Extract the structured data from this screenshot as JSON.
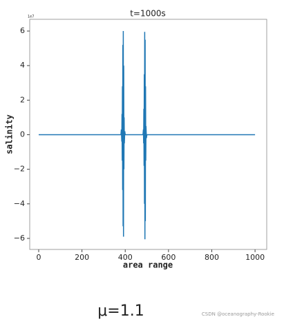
{
  "chart_data": {
    "type": "line",
    "title": "t=1000s",
    "x_label": "area range",
    "y_label": "salinity",
    "y_offset_label": "1e7",
    "x": [
      0,
      380,
      382,
      384,
      385,
      386,
      387,
      388,
      389,
      390,
      391,
      392,
      393,
      394,
      395,
      396,
      398,
      400,
      480,
      482,
      484,
      485,
      486,
      487,
      488,
      489,
      490,
      491,
      492,
      493,
      494,
      495,
      496,
      498,
      500,
      1000
    ],
    "series": [
      {
        "color": "#1f77b4",
        "values": [
          0,
          0,
          0.3,
          -0.4,
          1.2,
          -1.5,
          2.8,
          -3.2,
          5.2,
          -5.3,
          6.0,
          -5.9,
          4.0,
          -2.0,
          1.0,
          -0.5,
          0.2,
          0,
          0,
          0,
          0.3,
          -0.5,
          1.5,
          -1.8,
          3.5,
          -4.0,
          5.95,
          -6.05,
          5.5,
          -5.0,
          2.8,
          -1.5,
          0.5,
          -0.2,
          0,
          0
        ]
      }
    ],
    "xlim": [
      -41.5,
      1054
    ],
    "ylim": [
      -6.64,
      6.68
    ],
    "xticks": [
      0,
      200,
      400,
      600,
      800,
      1000
    ],
    "yticks": [
      {
        "value": -6,
        "label": "−6"
      },
      {
        "value": -4,
        "label": "−4"
      },
      {
        "value": -2,
        "label": "−2"
      },
      0,
      2,
      4,
      6
    ]
  },
  "caption": "μ=1.1",
  "watermark": "CSDN @oceanography-Rookie"
}
